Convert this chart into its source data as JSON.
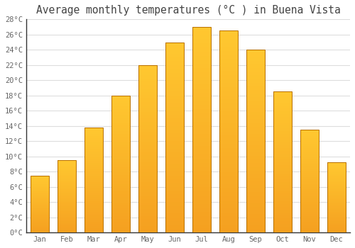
{
  "title": "Average monthly temperatures (°C ) in Buena Vista",
  "months": [
    "Jan",
    "Feb",
    "Mar",
    "Apr",
    "May",
    "Jun",
    "Jul",
    "Aug",
    "Sep",
    "Oct",
    "Nov",
    "Dec"
  ],
  "values": [
    7.5,
    9.5,
    13.8,
    18.0,
    22.0,
    25.0,
    27.0,
    26.5,
    24.0,
    18.5,
    13.5,
    9.2
  ],
  "bar_color_top": "#FFC125",
  "bar_color_bottom": "#F5A020",
  "bar_edge_color": "#B87000",
  "background_color": "#FFFFFF",
  "plot_bg_color": "#FFFFFF",
  "grid_color": "#DDDDDD",
  "title_color": "#444444",
  "tick_label_color": "#666666",
  "ylim": [
    0,
    28
  ],
  "ytick_step": 2,
  "title_fontsize": 10.5,
  "bar_width": 0.7
}
